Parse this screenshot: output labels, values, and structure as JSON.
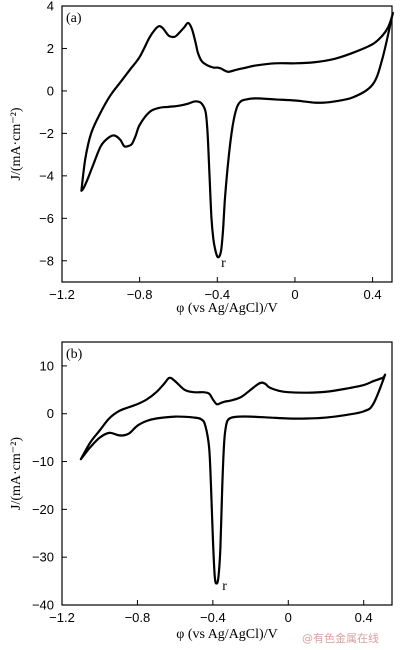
{
  "chart_data": [
    {
      "type": "line",
      "panel_label": "(a)",
      "xlabel": "φ (vs Ag/AgCl)/V",
      "ylabel": "J/(mA·cm⁻²)",
      "xlim": [
        -1.2,
        0.5
      ],
      "ylim": [
        -9,
        4
      ],
      "xticks": [
        -1.2,
        -0.8,
        -0.4,
        0,
        0.4
      ],
      "xtick_labels": [
        "−1.2",
        "−0.8",
        "−0.4",
        "0",
        "0.4"
      ],
      "yticks": [
        -8,
        -6,
        -4,
        -2,
        0,
        2,
        4
      ],
      "ytick_labels": [
        "−8",
        "−6",
        "−4",
        "−2",
        "0",
        "2",
        "4"
      ],
      "annotation": {
        "text": "r",
        "x": -0.38,
        "y": -8.1
      },
      "series": [
        {
          "x": [
            -1.1,
            -1.08,
            -1.05,
            -1.0,
            -0.95,
            -0.9,
            -0.85,
            -0.8,
            -0.75,
            -0.72,
            -0.7,
            -0.68,
            -0.65,
            -0.62,
            -0.6,
            -0.57,
            -0.55,
            -0.53,
            -0.51,
            -0.5,
            -0.48,
            -0.45,
            -0.42,
            -0.4,
            -0.38,
            -0.36,
            -0.34,
            -0.3,
            -0.25,
            -0.2,
            -0.1,
            0.0,
            0.1,
            0.2,
            0.3,
            0.4,
            0.45,
            0.48,
            0.5,
            0.5,
            0.45,
            0.4,
            0.3,
            0.2,
            0.15,
            0.1,
            0.05,
            0.0,
            -0.1,
            -0.2,
            -0.25,
            -0.28,
            -0.3,
            -0.32,
            -0.34,
            -0.36,
            -0.37,
            -0.38,
            -0.39,
            -0.4,
            -0.41,
            -0.42,
            -0.43,
            -0.44,
            -0.45,
            -0.46,
            -0.48,
            -0.5,
            -0.52,
            -0.55,
            -0.6,
            -0.65,
            -0.7,
            -0.75,
            -0.8,
            -0.82,
            -0.84,
            -0.86,
            -0.88,
            -0.9,
            -0.93,
            -0.96,
            -1.0,
            -1.04,
            -1.07,
            -1.09,
            -1.1
          ],
          "y": [
            -4.7,
            -3.2,
            -2.0,
            -1.0,
            -0.2,
            0.4,
            1.0,
            1.6,
            2.5,
            2.9,
            3.05,
            2.95,
            2.6,
            2.55,
            2.7,
            3.0,
            3.2,
            2.9,
            2.2,
            1.8,
            1.4,
            1.2,
            1.1,
            1.1,
            1.05,
            0.95,
            0.9,
            1.0,
            1.1,
            1.2,
            1.3,
            1.3,
            1.35,
            1.5,
            1.8,
            2.2,
            2.6,
            3.0,
            3.5,
            3.5,
            1.5,
            0.3,
            -0.3,
            -0.5,
            -0.55,
            -0.55,
            -0.5,
            -0.45,
            -0.4,
            -0.35,
            -0.4,
            -0.5,
            -0.8,
            -1.6,
            -3.0,
            -5.0,
            -6.5,
            -7.5,
            -7.8,
            -7.8,
            -7.5,
            -7.0,
            -6.0,
            -4.0,
            -2.0,
            -1.0,
            -0.6,
            -0.5,
            -0.5,
            -0.6,
            -0.7,
            -0.75,
            -0.8,
            -1.0,
            -1.6,
            -2.1,
            -2.5,
            -2.6,
            -2.6,
            -2.3,
            -2.1,
            -2.2,
            -2.6,
            -3.5,
            -4.2,
            -4.6,
            -4.7
          ]
        }
      ]
    },
    {
      "type": "line",
      "panel_label": "(b)",
      "xlabel": "φ (vs Ag/AgCl)/V",
      "ylabel": "J/(mA·cm⁻²)",
      "xlim": [
        -1.2,
        0.55
      ],
      "ylim": [
        -40,
        15
      ],
      "xticks": [
        -1.2,
        -0.8,
        -0.4,
        0,
        0.4
      ],
      "xtick_labels": [
        "−1.2",
        "−0.8",
        "−0.4",
        "0",
        "0.4"
      ],
      "yticks": [
        -40,
        -30,
        -20,
        -10,
        0,
        10
      ],
      "ytick_labels": [
        "−40",
        "−30",
        "−20",
        "−10",
        "0",
        "10"
      ],
      "annotation": {
        "text": "r",
        "x": -0.35,
        "y": -36
      },
      "series": [
        {
          "x": [
            -1.1,
            -1.05,
            -1.0,
            -0.95,
            -0.9,
            -0.85,
            -0.8,
            -0.75,
            -0.7,
            -0.66,
            -0.63,
            -0.6,
            -0.55,
            -0.5,
            -0.45,
            -0.42,
            -0.4,
            -0.38,
            -0.36,
            -0.34,
            -0.3,
            -0.25,
            -0.2,
            -0.16,
            -0.14,
            -0.12,
            -0.1,
            -0.05,
            0.0,
            0.1,
            0.2,
            0.3,
            0.4,
            0.45,
            0.5,
            0.51,
            0.45,
            0.4,
            0.3,
            0.2,
            0.1,
            0.0,
            -0.1,
            -0.2,
            -0.26,
            -0.3,
            -0.32,
            -0.33,
            -0.34,
            -0.35,
            -0.36,
            -0.37,
            -0.38,
            -0.39,
            -0.4,
            -0.41,
            -0.42,
            -0.44,
            -0.46,
            -0.5,
            -0.6,
            -0.7,
            -0.75,
            -0.8,
            -0.84,
            -0.87,
            -0.9,
            -0.95,
            -1.0,
            -1.05,
            -1.08,
            -1.1
          ],
          "y": [
            -9.5,
            -6.0,
            -3.5,
            -1.0,
            0.5,
            1.3,
            2.0,
            3.0,
            4.5,
            6.2,
            7.5,
            6.8,
            5.0,
            4.5,
            4.5,
            4.2,
            3.0,
            2.0,
            2.2,
            2.5,
            2.8,
            3.5,
            5.0,
            6.2,
            6.5,
            6.2,
            5.5,
            4.8,
            4.5,
            4.4,
            4.6,
            5.2,
            6.0,
            6.8,
            7.5,
            7.8,
            2.0,
            0.5,
            -0.3,
            -0.8,
            -1.0,
            -1.0,
            -0.8,
            -0.6,
            -0.6,
            -0.8,
            -1.3,
            -2.5,
            -6.0,
            -15.0,
            -28.0,
            -34.0,
            -35.5,
            -34.0,
            -26.0,
            -15.0,
            -7.0,
            -2.5,
            -1.2,
            -0.8,
            -0.6,
            -1.0,
            -1.5,
            -2.5,
            -4.0,
            -4.5,
            -4.5,
            -4.0,
            -5.0,
            -7.0,
            -8.5,
            -9.5
          ]
        }
      ]
    }
  ],
  "watermark": "@有色金属在线"
}
